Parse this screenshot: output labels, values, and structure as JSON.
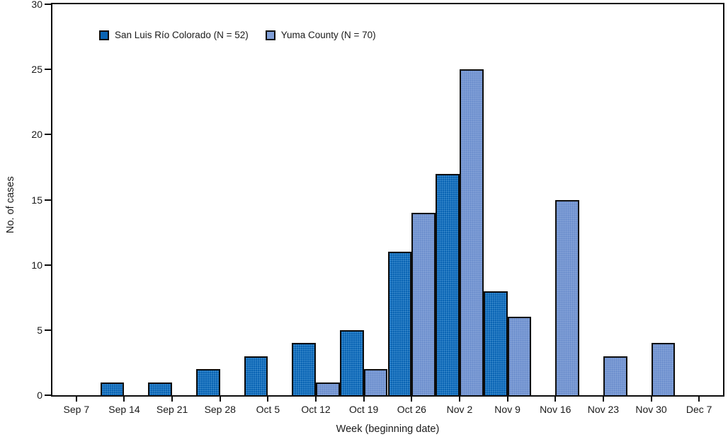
{
  "chart_data": {
    "type": "bar",
    "title": "",
    "categories": [
      "Sep 7",
      "Sep 14",
      "Sep 21",
      "Sep 28",
      "Oct 5",
      "Oct 12",
      "Oct 19",
      "Oct 26",
      "Nov 2",
      "Nov 9",
      "Nov 16",
      "Nov 23",
      "Nov 30",
      "Dec 7"
    ],
    "series": [
      {
        "name": "San Luis Río Colorado (N = 52)",
        "color": "#0a64b4",
        "values": [
          0,
          1,
          1,
          2,
          3,
          4,
          5,
          11,
          17,
          8,
          0,
          0,
          0,
          0
        ]
      },
      {
        "name": "Yuma County (N = 70)",
        "color": "#7f9ed6",
        "values": [
          0,
          0,
          0,
          0,
          0,
          1,
          2,
          14,
          25,
          6,
          15,
          3,
          4,
          0
        ]
      }
    ],
    "xlabel": "Week (beginning date)",
    "ylabel": "No. of cases",
    "ylim": [
      0,
      30
    ],
    "yticks": [
      0,
      5,
      10,
      15,
      20,
      25,
      30
    ],
    "grid": false,
    "legend_position": "top-left-inside",
    "bar_outline_color": "#0d0d0d",
    "frame_color": "#0c0c0c",
    "background_color": "#ffffff"
  }
}
